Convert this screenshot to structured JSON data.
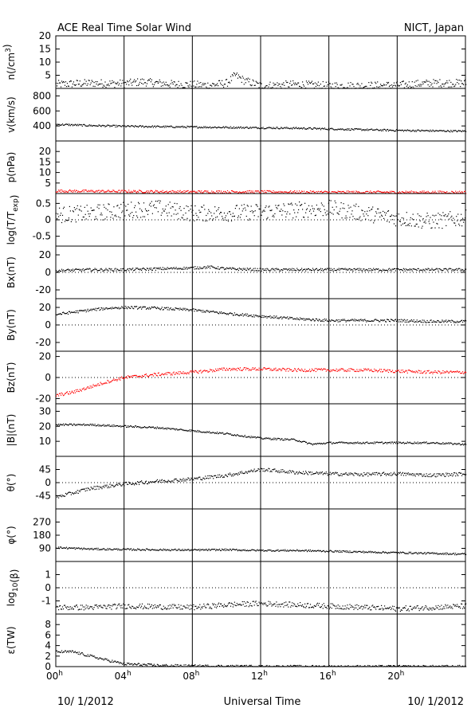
{
  "header": {
    "title": "ACE Real Time Solar Wind",
    "source": "NICT, Japan"
  },
  "footer": {
    "date_left": "10/ 1/2012",
    "center": "Universal Time",
    "date_right": "10/ 1/2012"
  },
  "chart_data": {
    "type": "scatter",
    "title": "ACE Real Time Solar Wind",
    "xlabel": "Universal Time",
    "x_ticks": [
      {
        "hour": 0,
        "label": "00",
        "sup": "h"
      },
      {
        "hour": 4,
        "label": "04",
        "sup": "h"
      },
      {
        "hour": 8,
        "label": "08",
        "sup": "h"
      },
      {
        "hour": 12,
        "label": "12",
        "sup": "h"
      },
      {
        "hour": 16,
        "label": "16",
        "sup": "h"
      },
      {
        "hour": 20,
        "label": "20",
        "sup": "h"
      }
    ],
    "xlim": [
      0,
      24
    ],
    "vertical_grid_hours": [
      4,
      8,
      12,
      16,
      20
    ],
    "panels": [
      {
        "id": "density",
        "ylabel": [
          {
            "t": "n(/cm"
          },
          {
            "t": "3",
            "sup": true
          },
          {
            "t": ")"
          }
        ],
        "ylim": [
          0,
          20
        ],
        "ticks": [
          {
            "v": 5,
            "label": "5"
          },
          {
            "v": 10,
            "label": "10"
          },
          {
            "v": 15,
            "label": "15"
          },
          {
            "v": 20,
            "label": "20"
          }
        ],
        "zero_line": false,
        "color": "#000000",
        "series": [
          [
            0,
            1.5
          ],
          [
            2,
            2
          ],
          [
            4,
            1.8
          ],
          [
            5,
            2.5
          ],
          [
            7,
            1.5
          ],
          [
            9,
            1.2
          ],
          [
            10,
            2
          ],
          [
            10.5,
            5
          ],
          [
            11,
            3
          ],
          [
            12,
            1
          ],
          [
            14,
            1.5
          ],
          [
            16,
            1
          ],
          [
            18,
            1
          ],
          [
            20,
            1.2
          ],
          [
            22,
            2
          ],
          [
            24,
            2
          ]
        ],
        "scatter_amp": 1.5
      },
      {
        "id": "velocity",
        "ylabel": [
          {
            "t": "v(km/s)"
          }
        ],
        "ylim": [
          200,
          900
        ],
        "ticks": [
          {
            "v": 400,
            "label": "400"
          },
          {
            "v": 600,
            "label": "600"
          },
          {
            "v": 800,
            "label": "800"
          }
        ],
        "zero_line": false,
        "color": "#000000",
        "series": [
          [
            0,
            420
          ],
          [
            2,
            405
          ],
          [
            4,
            395
          ],
          [
            6,
            390
          ],
          [
            8,
            385
          ],
          [
            10,
            380
          ],
          [
            12,
            375
          ],
          [
            14,
            370
          ],
          [
            16,
            360
          ],
          [
            18,
            350
          ],
          [
            20,
            340
          ],
          [
            22,
            335
          ],
          [
            24,
            330
          ]
        ],
        "scatter_amp": 12
      },
      {
        "id": "pressure",
        "ylabel": [
          {
            "t": "p(nPa)"
          }
        ],
        "ylim": [
          0,
          25
        ],
        "ticks": [
          {
            "v": 5,
            "label": "5"
          },
          {
            "v": 10,
            "label": "10"
          },
          {
            "v": 15,
            "label": "15"
          },
          {
            "v": 20,
            "label": "20"
          }
        ],
        "zero_line": false,
        "color": "#ff0000",
        "series": [
          [
            0,
            1.2
          ],
          [
            4,
            1
          ],
          [
            8,
            0.8
          ],
          [
            12,
            0.8
          ],
          [
            16,
            0.6
          ],
          [
            20,
            0.6
          ],
          [
            24,
            0.6
          ]
        ],
        "scatter_amp": 0.6
      },
      {
        "id": "temperature",
        "ylabel": [
          {
            "t": "log(T/T"
          },
          {
            "t": "exp",
            "sub": true
          },
          {
            "t": ")"
          }
        ],
        "ylim": [
          -0.8,
          0.8
        ],
        "ticks": [
          {
            "v": -0.5,
            "label": "-0.5"
          },
          {
            "v": 0,
            "label": "0"
          },
          {
            "v": 0.5,
            "label": "0.5"
          }
        ],
        "zero_line": true,
        "color": "#000000",
        "series": [
          [
            0,
            0.15
          ],
          [
            2,
            0.2
          ],
          [
            4,
            0.3
          ],
          [
            6,
            0.35
          ],
          [
            8,
            0.2
          ],
          [
            10,
            0.2
          ],
          [
            12,
            0.25
          ],
          [
            14,
            0.3
          ],
          [
            16,
            0.35
          ],
          [
            18,
            0.2
          ],
          [
            20,
            0.05
          ],
          [
            22,
            -0.05
          ],
          [
            24,
            0.05
          ]
        ],
        "scatter_amp": 0.25
      },
      {
        "id": "bx",
        "ylabel": [
          {
            "t": "Bx(nT)"
          }
        ],
        "ylim": [
          -30,
          30
        ],
        "ticks": [
          {
            "v": -20,
            "label": "-20"
          },
          {
            "v": 0,
            "label": "0"
          },
          {
            "v": 20,
            "label": "20"
          }
        ],
        "zero_line": true,
        "color": "#000000",
        "series": [
          [
            0,
            2
          ],
          [
            2,
            3
          ],
          [
            4,
            3
          ],
          [
            6,
            4
          ],
          [
            8,
            5
          ],
          [
            9,
            6
          ],
          [
            10,
            4
          ],
          [
            12,
            3
          ],
          [
            14,
            3
          ],
          [
            16,
            3
          ],
          [
            18,
            3
          ],
          [
            20,
            3
          ],
          [
            22,
            3
          ],
          [
            24,
            3
          ]
        ],
        "scatter_amp": 1.5
      },
      {
        "id": "by",
        "ylabel": [
          {
            "t": "By(nT)"
          }
        ],
        "ylim": [
          -30,
          30
        ],
        "ticks": [
          {
            "v": -20,
            "label": "-20"
          },
          {
            "v": 0,
            "label": "0"
          },
          {
            "v": 20,
            "label": "20"
          }
        ],
        "zero_line": true,
        "color": "#000000",
        "series": [
          [
            0,
            12
          ],
          [
            2,
            17
          ],
          [
            3,
            19
          ],
          [
            4,
            20
          ],
          [
            6,
            19
          ],
          [
            8,
            17
          ],
          [
            10,
            13
          ],
          [
            12,
            10
          ],
          [
            14,
            7
          ],
          [
            16,
            5
          ],
          [
            18,
            5
          ],
          [
            20,
            5
          ],
          [
            22,
            4
          ],
          [
            24,
            4
          ]
        ],
        "scatter_amp": 1.5
      },
      {
        "id": "bz",
        "ylabel": [
          {
            "t": "Bz(nT)"
          }
        ],
        "ylim": [
          -25,
          25
        ],
        "ticks": [
          {
            "v": -20,
            "label": "-20"
          },
          {
            "v": 0,
            "label": "0"
          },
          {
            "v": 20,
            "label": "20"
          }
        ],
        "zero_line": true,
        "color": "#ff0000",
        "series": [
          [
            0,
            -17
          ],
          [
            1,
            -14
          ],
          [
            2,
            -9
          ],
          [
            3,
            -4
          ],
          [
            4,
            0
          ],
          [
            6,
            3
          ],
          [
            8,
            5
          ],
          [
            10,
            8
          ],
          [
            12,
            8
          ],
          [
            14,
            7
          ],
          [
            16,
            7
          ],
          [
            18,
            7
          ],
          [
            20,
            6
          ],
          [
            22,
            5
          ],
          [
            24,
            5
          ]
        ],
        "scatter_amp": 1.5
      },
      {
        "id": "bt",
        "ylabel": [
          {
            "t": "|B|(nT)"
          }
        ],
        "ylim": [
          0,
          35
        ],
        "ticks": [
          {
            "v": 10,
            "label": "10"
          },
          {
            "v": 20,
            "label": "20"
          },
          {
            "v": 30,
            "label": "30"
          }
        ],
        "zero_line": false,
        "color": "#000000",
        "series": [
          [
            0,
            21
          ],
          [
            2,
            21
          ],
          [
            4,
            20
          ],
          [
            6,
            19
          ],
          [
            8,
            17
          ],
          [
            10,
            15
          ],
          [
            12,
            12
          ],
          [
            14,
            11
          ],
          [
            15,
            8
          ],
          [
            16,
            9
          ],
          [
            18,
            9
          ],
          [
            20,
            9
          ],
          [
            22,
            9
          ],
          [
            24,
            8
          ]
        ],
        "scatter_amp": 0.6
      },
      {
        "id": "theta",
        "ylabel": [
          {
            "t": "θ(°)"
          }
        ],
        "ylim": [
          -90,
          90
        ],
        "ticks": [
          {
            "v": -45,
            "label": "-45"
          },
          {
            "v": 0,
            "label": "0"
          },
          {
            "v": 45,
            "label": "45"
          }
        ],
        "zero_line": true,
        "color": "#000000",
        "series": [
          [
            0,
            -50
          ],
          [
            1,
            -35
          ],
          [
            2,
            -20
          ],
          [
            4,
            -5
          ],
          [
            6,
            5
          ],
          [
            8,
            12
          ],
          [
            10,
            25
          ],
          [
            12,
            45
          ],
          [
            14,
            35
          ],
          [
            16,
            30
          ],
          [
            18,
            28
          ],
          [
            20,
            30
          ],
          [
            22,
            25
          ],
          [
            24,
            30
          ]
        ],
        "scatter_amp": 6
      },
      {
        "id": "phi",
        "ylabel": [
          {
            "t": "φ(°)"
          }
        ],
        "ylim": [
          0,
          360
        ],
        "ticks": [
          {
            "v": 90,
            "label": "90"
          },
          {
            "v": 180,
            "label": "180"
          },
          {
            "v": 270,
            "label": "270"
          }
        ],
        "zero_line": false,
        "color": "#000000",
        "series": [
          [
            0,
            95
          ],
          [
            2,
            85
          ],
          [
            4,
            82
          ],
          [
            6,
            80
          ],
          [
            8,
            78
          ],
          [
            10,
            80
          ],
          [
            12,
            75
          ],
          [
            14,
            75
          ],
          [
            16,
            70
          ],
          [
            18,
            65
          ],
          [
            20,
            60
          ],
          [
            22,
            55
          ],
          [
            24,
            50
          ]
        ],
        "scatter_amp": 6
      },
      {
        "id": "beta",
        "ylabel": [
          {
            "t": "log"
          },
          {
            "t": "10",
            "sub": true
          },
          {
            "t": "(β)"
          }
        ],
        "ylim": [
          -2,
          2
        ],
        "ticks": [
          {
            "v": -1,
            "label": "-1"
          },
          {
            "v": 0,
            "label": "0"
          },
          {
            "v": 1,
            "label": "1"
          }
        ],
        "zero_line": true,
        "color": "#000000",
        "series": [
          [
            0,
            -1.5
          ],
          [
            2,
            -1.5
          ],
          [
            4,
            -1.4
          ],
          [
            8,
            -1.5
          ],
          [
            10,
            -1.3
          ],
          [
            12,
            -1.2
          ],
          [
            14,
            -1.3
          ],
          [
            16,
            -1.4
          ],
          [
            18,
            -1.5
          ],
          [
            20,
            -1.6
          ],
          [
            22,
            -1.5
          ],
          [
            24,
            -1.4
          ]
        ],
        "scatter_amp": 0.2
      },
      {
        "id": "epsilon",
        "ylabel": [
          {
            "t": "ε(TW)"
          }
        ],
        "ylim": [
          0,
          10
        ],
        "ticks": [
          {
            "v": 0,
            "label": "0"
          },
          {
            "v": 2,
            "label": "2"
          },
          {
            "v": 4,
            "label": "4"
          },
          {
            "v": 6,
            "label": "6"
          },
          {
            "v": 8,
            "label": "8"
          }
        ],
        "zero_line": false,
        "color": "#000000",
        "series": [
          [
            0,
            2.8
          ],
          [
            1,
            2.8
          ],
          [
            2,
            2
          ],
          [
            3,
            1.2
          ],
          [
            4,
            0.5
          ],
          [
            6,
            0.2
          ],
          [
            8,
            0.1
          ],
          [
            10,
            0.05
          ],
          [
            12,
            0
          ],
          [
            24,
            0
          ]
        ],
        "scatter_amp": 0.25
      }
    ]
  }
}
